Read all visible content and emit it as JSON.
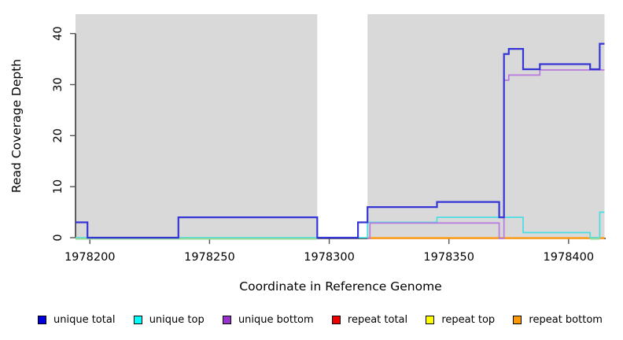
{
  "figure": {
    "background": "#ffffff"
  },
  "chart_data": {
    "type": "line",
    "subtype": "step-coverage-plot",
    "title": "",
    "xlabel": "Coordinate in Reference Genome",
    "ylabel": "Read Coverage Depth",
    "x_range": [
      1978194,
      1978415.5
    ],
    "y_range": [
      0,
      43.8
    ],
    "x_ticks": [
      1978200,
      1978250,
      1978300,
      1978350,
      1978400
    ],
    "y_ticks": [
      0,
      10,
      20,
      30,
      40
    ],
    "grid": false,
    "legend_position": "bottom",
    "plot_background": "#ffffff",
    "shaded_color": "#d9d9d9",
    "shaded_regions": [
      {
        "x1": 1978194,
        "x2": 1978295
      },
      {
        "x1": 1978316,
        "x2": 1978415
      }
    ],
    "overlap_color": "#96d996",
    "overlap_segments": [
      {
        "x1": 1978194,
        "x2": 1978295,
        "y": 0
      },
      {
        "x1": 1978409,
        "x2": 1978413,
        "y": 0
      }
    ],
    "series": [
      {
        "name": "unique total",
        "legend_color": "#0000dd",
        "line_color": "#3535d6",
        "points": [
          [
            1978194,
            3
          ],
          [
            1978199,
            0
          ],
          [
            1978237,
            4
          ],
          [
            1978295,
            0
          ],
          [
            1978312,
            3
          ],
          [
            1978316,
            6
          ],
          [
            1978345,
            7
          ],
          [
            1978371,
            4
          ],
          [
            1978373,
            36
          ],
          [
            1978375,
            37
          ],
          [
            1978381,
            33
          ],
          [
            1978388,
            34
          ],
          [
            1978409,
            33
          ],
          [
            1978413,
            38
          ],
          [
            1978415,
            38
          ]
        ]
      },
      {
        "name": "unique top",
        "legend_color": "#00ffff",
        "line_color": "#4adde2",
        "points": [
          [
            1978194,
            0
          ],
          [
            1978316,
            3
          ],
          [
            1978345,
            4
          ],
          [
            1978381,
            1
          ],
          [
            1978409,
            0
          ],
          [
            1978413,
            5
          ],
          [
            1978415,
            5
          ]
        ]
      },
      {
        "name": "unique bottom",
        "legend_color": "#9932cc",
        "line_color": "#b878de",
        "points": [
          [
            1978316,
            0
          ],
          [
            1978317,
            3
          ],
          [
            1978371,
            0
          ],
          [
            1978373,
            31
          ],
          [
            1978375,
            32
          ],
          [
            1978388,
            33
          ],
          [
            1978415,
            33
          ]
        ]
      },
      {
        "name": "repeat total",
        "legend_color": "#ee0000",
        "line_color": "#ee0000",
        "points": [
          [
            1978316,
            0
          ],
          [
            1978415,
            0
          ]
        ]
      },
      {
        "name": "repeat top",
        "legend_color": "#ffff00",
        "line_color": "#e8e84a",
        "points": [
          [
            1978194,
            0
          ],
          [
            1978295,
            0
          ]
        ]
      },
      {
        "name": "repeat bottom",
        "legend_color": "#ff9900",
        "line_color": "#ff9e1a",
        "points": [
          [
            1978316,
            0
          ],
          [
            1978415,
            0
          ]
        ]
      }
    ]
  }
}
